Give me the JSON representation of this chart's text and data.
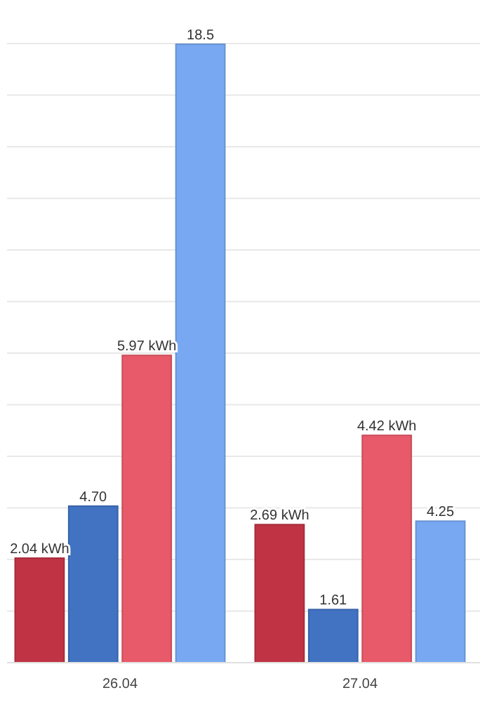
{
  "chart_data": {
    "type": "bar",
    "categories": [
      "26.04",
      "27.04"
    ],
    "series": [
      {
        "color": "#bf3344",
        "values": [
          2.04,
          2.69
        ],
        "value_labels": [
          "2.04 kWh",
          "2.69 kWh"
        ]
      },
      {
        "color": "#4273c2",
        "values": [
          4.7,
          1.61
        ],
        "value_labels": [
          "4.70",
          "1.61"
        ],
        "axis": "y2"
      },
      {
        "color": "#e85a6a",
        "values": [
          5.97,
          4.42
        ],
        "value_labels": [
          "5.97 kWh",
          "4.42 kWh"
        ]
      },
      {
        "color": "#78a8f2",
        "values": [
          18.5,
          4.25
        ],
        "value_labels": [
          "18.5",
          "4.25"
        ],
        "axis": "y2"
      }
    ],
    "ylim": [
      0,
      12
    ],
    "y2lim": [
      0,
      18.5
    ],
    "grid": "y",
    "tick_labels": "x"
  }
}
